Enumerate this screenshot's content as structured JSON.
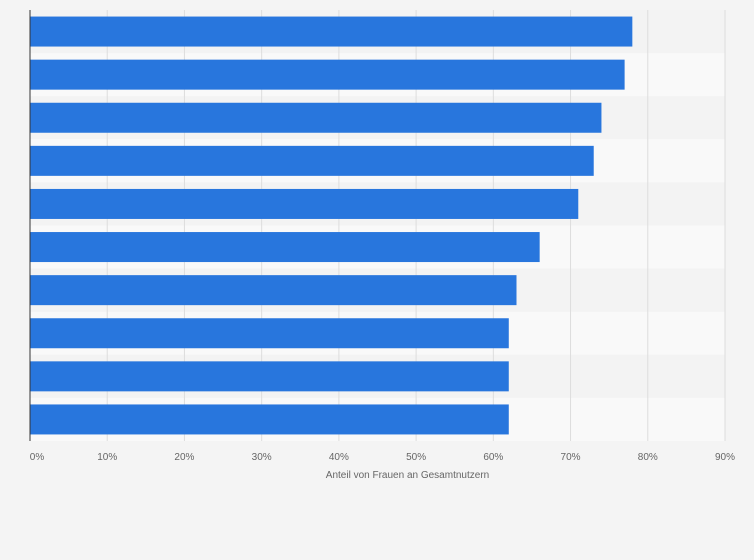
{
  "chart_data": {
    "type": "bar",
    "orientation": "horizontal",
    "title": "",
    "xlabel": "Anteil von Frauen an Gesamtnutzern",
    "ylabel": "",
    "categories": [
      "",
      "",
      "",
      "",
      "",
      "",
      "",
      "",
      "",
      ""
    ],
    "values": [
      78,
      77,
      74,
      73,
      71,
      66,
      63,
      62,
      62,
      62
    ],
    "xlim": [
      0,
      90
    ],
    "x_ticks": [
      "0%",
      "10%",
      "20%",
      "30%",
      "40%",
      "50%",
      "60%",
      "70%",
      "80%",
      "90%"
    ],
    "value_suffix": "%",
    "grid": true,
    "legend": "none",
    "colors": {
      "bar": "#2876dd",
      "band_light": "#f9f9f9",
      "band_dark": "#f3f3f3",
      "gridline": "#dddddd",
      "axis": "#333333",
      "tick_text": "#666666"
    }
  }
}
